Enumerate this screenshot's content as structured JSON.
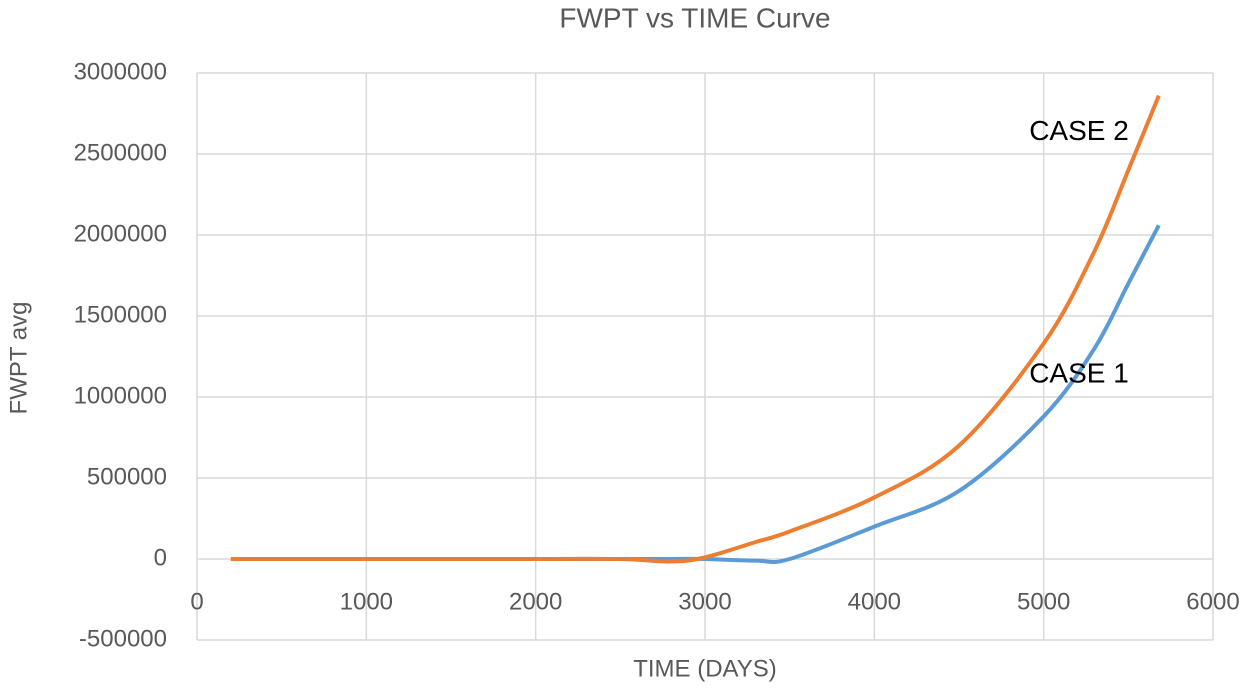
{
  "chart_data": {
    "type": "line",
    "title": "FWPT vs  TIME Curve",
    "x_label": "TIME (DAYS)",
    "y_label": "FWPT avg",
    "x": [
      200,
      1000,
      2000,
      2500,
      2800,
      3000,
      3300,
      3500,
      4000,
      4500,
      5000,
      5300,
      5500,
      5680
    ],
    "series": [
      {
        "name": "CASE 1",
        "color": "#5b9bd5",
        "values": [
          0,
          0,
          0,
          0,
          0,
          0,
          -10000,
          0,
          200000,
          420000,
          880000,
          1300000,
          1700000,
          2060000
        ]
      },
      {
        "name": "CASE 2",
        "color": "#ed7d31",
        "values": [
          0,
          0,
          0,
          0,
          -15000,
          10000,
          105000,
          170000,
          380000,
          700000,
          1330000,
          1900000,
          2400000,
          2860000
        ]
      }
    ],
    "xlim": [
      0,
      6000
    ],
    "xticks": [
      0,
      1000,
      2000,
      3000,
      4000,
      5000,
      6000
    ],
    "ylim": [
      -500000,
      3000000
    ],
    "yticks": [
      -500000,
      0,
      500000,
      1000000,
      1500000,
      2000000,
      2500000,
      3000000
    ],
    "grid": true
  }
}
